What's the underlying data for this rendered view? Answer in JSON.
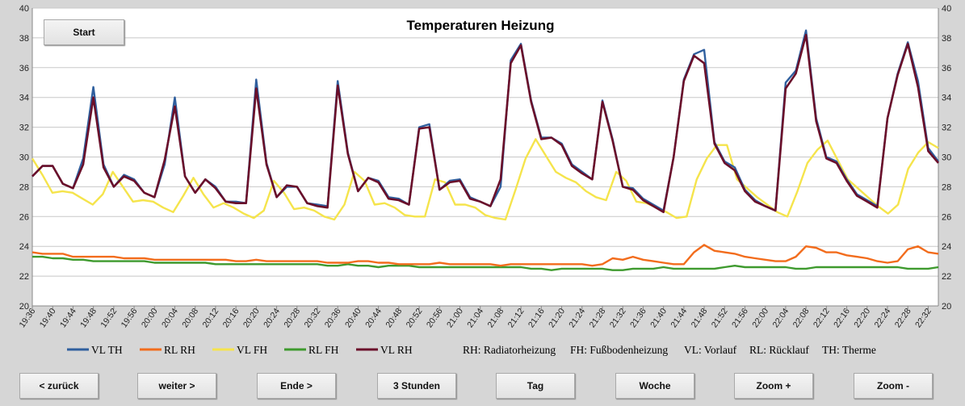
{
  "start_button": "Start",
  "nav_buttons": [
    "< zurück",
    "weiter >",
    "Ende >",
    "3 Stunden",
    "Tag",
    "Woche",
    "Zoom +",
    "Zoom -"
  ],
  "legend_notes": [
    "RH: Radiatorheizung",
    "FH: Fußbodenheizung",
    "VL: Vorlauf",
    "RL: Rücklauf",
    "TH: Therme"
  ],
  "colors": {
    "background": "#d6d6d6",
    "plot": "#ffffff",
    "grid": "#c8c8c8"
  },
  "chart_data": {
    "type": "line",
    "title": "Temperaturen Heizung",
    "ylim": [
      20,
      40
    ],
    "yticks": [
      20,
      22,
      24,
      26,
      28,
      30,
      32,
      34,
      36,
      38,
      40
    ],
    "secondary_y_axis": true,
    "grid": "horizontal",
    "legend_position": "bottom",
    "x_tick_labels": [
      "19:36",
      "19:40",
      "19:44",
      "19:48",
      "19:52",
      "19:56",
      "20:00",
      "20:04",
      "20:08",
      "20:12",
      "20:16",
      "20:20",
      "20:24",
      "20:28",
      "20:32",
      "20:36",
      "20:40",
      "20:44",
      "20:48",
      "20:52",
      "20:56",
      "21:00",
      "21:04",
      "21:08",
      "21:12",
      "21:16",
      "21:20",
      "21:24",
      "21:28",
      "21:32",
      "21:36",
      "21:40",
      "21:44",
      "21:48",
      "21:52",
      "21:56",
      "22:00",
      "22:04",
      "22:08",
      "22:12",
      "22:16",
      "22:20",
      "22:24",
      "22:28",
      "22:32"
    ],
    "series": [
      {
        "name": "VL TH",
        "color": "#2f5f9e",
        "values": [
          28.7,
          29.4,
          29.4,
          28.2,
          27.9,
          29.9,
          34.7,
          29.5,
          28,
          28.8,
          28.5,
          27.6,
          27.3,
          29.5,
          34,
          28.7,
          27.6,
          28.5,
          28,
          27,
          27,
          26.9,
          35.2,
          29.6,
          27.3,
          28,
          28,
          26.9,
          26.8,
          26.7,
          35.1,
          30.3,
          27.7,
          28.6,
          28.4,
          27.3,
          27.2,
          26.8,
          32,
          32.2,
          27.8,
          28.4,
          28.5,
          27.3,
          27,
          26.7,
          28,
          36.5,
          37.6,
          33.8,
          31.3,
          31.3,
          30.9,
          29.5,
          29,
          28.5,
          33.8,
          31.2,
          28,
          27.9,
          27.2,
          26.8,
          26.4,
          30,
          35.2,
          36.9,
          37.2,
          31,
          29.7,
          29.3,
          27.8,
          27.1,
          26.7,
          26.4,
          35,
          35.8,
          38.5,
          32.6,
          30,
          29.7,
          28.5,
          27.5,
          27.1,
          26.7,
          32.6,
          35.6,
          37.7,
          35.1,
          30.6,
          29.7
        ]
      },
      {
        "name": "RL RH",
        "color": "#f26c1c",
        "values": [
          23.6,
          23.5,
          23.5,
          23.5,
          23.3,
          23.3,
          23.3,
          23.3,
          23.3,
          23.2,
          23.2,
          23.2,
          23.1,
          23.1,
          23.1,
          23.1,
          23.1,
          23.1,
          23.1,
          23.1,
          23.0,
          23.0,
          23.1,
          23.0,
          23.0,
          23.0,
          23.0,
          23.0,
          23.0,
          22.9,
          22.9,
          22.9,
          23.0,
          23.0,
          22.9,
          22.9,
          22.8,
          22.8,
          22.8,
          22.8,
          22.9,
          22.8,
          22.8,
          22.8,
          22.8,
          22.8,
          22.7,
          22.8,
          22.8,
          22.8,
          22.8,
          22.8,
          22.8,
          22.8,
          22.8,
          22.7,
          22.8,
          23.2,
          23.1,
          23.3,
          23.1,
          23.0,
          22.9,
          22.8,
          22.8,
          23.6,
          24.1,
          23.7,
          23.6,
          23.5,
          23.3,
          23.2,
          23.1,
          23.0,
          23.0,
          23.3,
          24.0,
          23.9,
          23.6,
          23.6,
          23.4,
          23.3,
          23.2,
          23.0,
          22.9,
          23.0,
          23.8,
          24.0,
          23.6,
          23.5
        ]
      },
      {
        "name": "VL FH",
        "color": "#f5e44c",
        "values": [
          29.9,
          28.8,
          27.6,
          27.7,
          27.6,
          27.2,
          26.8,
          27.5,
          29,
          28,
          27,
          27.1,
          27,
          26.6,
          26.3,
          27.4,
          28.6,
          27.5,
          26.6,
          26.9,
          26.6,
          26.2,
          25.9,
          26.4,
          28.4,
          27.6,
          26.5,
          26.6,
          26.4,
          26,
          25.8,
          26.8,
          29,
          28.4,
          26.8,
          26.9,
          26.6,
          26.1,
          26,
          26,
          28.5,
          28.3,
          26.8,
          26.8,
          26.6,
          26.1,
          25.9,
          25.8,
          27.8,
          29.9,
          31.2,
          30.1,
          29,
          28.6,
          28.3,
          27.7,
          27.3,
          27.1,
          29,
          28.4,
          27,
          26.9,
          26.6,
          26.3,
          25.9,
          26,
          28.5,
          29.9,
          30.8,
          30.8,
          28.5,
          27.9,
          27.3,
          26.8,
          26.3,
          26,
          27.7,
          29.6,
          30.5,
          31.1,
          29.8,
          28.5,
          27.9,
          27.3,
          26.7,
          26.2,
          26.8,
          29.2,
          30.3,
          31,
          30.6
        ]
      },
      {
        "name": "RL FH",
        "color": "#3e9a2e",
        "values": [
          23.3,
          23.3,
          23.2,
          23.2,
          23.1,
          23.1,
          23.0,
          23.0,
          23.0,
          23.0,
          23.0,
          23.0,
          22.9,
          22.9,
          22.9,
          22.9,
          22.9,
          22.9,
          22.8,
          22.8,
          22.8,
          22.8,
          22.8,
          22.8,
          22.8,
          22.8,
          22.8,
          22.8,
          22.8,
          22.7,
          22.7,
          22.8,
          22.7,
          22.7,
          22.6,
          22.7,
          22.7,
          22.7,
          22.6,
          22.6,
          22.6,
          22.6,
          22.6,
          22.6,
          22.6,
          22.6,
          22.6,
          22.6,
          22.6,
          22.5,
          22.5,
          22.4,
          22.5,
          22.5,
          22.5,
          22.5,
          22.5,
          22.4,
          22.4,
          22.5,
          22.5,
          22.5,
          22.6,
          22.5,
          22.5,
          22.5,
          22.5,
          22.5,
          22.6,
          22.7,
          22.6,
          22.6,
          22.6,
          22.6,
          22.6,
          22.5,
          22.5,
          22.6,
          22.6,
          22.6,
          22.6,
          22.6,
          22.6,
          22.6,
          22.6,
          22.6,
          22.5,
          22.5,
          22.5,
          22.6
        ]
      },
      {
        "name": "VL RH",
        "color": "#6a0f2a",
        "values": [
          28.7,
          29.4,
          29.4,
          28.2,
          27.9,
          29.5,
          34,
          29.3,
          28,
          28.7,
          28.4,
          27.6,
          27.3,
          29.8,
          33.4,
          28.7,
          27.6,
          28.5,
          27.9,
          27,
          26.9,
          26.9,
          34.6,
          29.5,
          27.3,
          28.1,
          28,
          26.9,
          26.7,
          26.6,
          34.8,
          30.2,
          27.7,
          28.6,
          28.3,
          27.2,
          27.1,
          26.8,
          31.9,
          32,
          27.8,
          28.3,
          28.4,
          27.2,
          27,
          26.7,
          28.5,
          36.3,
          37.5,
          33.7,
          31.2,
          31.3,
          30.8,
          29.4,
          28.9,
          28.5,
          33.7,
          31.1,
          28,
          27.8,
          27.1,
          26.7,
          26.3,
          30,
          35.1,
          36.8,
          36.3,
          30.9,
          29.6,
          29.1,
          27.7,
          27,
          26.7,
          26.4,
          34.6,
          35.6,
          38.2,
          32.4,
          29.9,
          29.6,
          28.4,
          27.4,
          27,
          26.6,
          32.6,
          35.5,
          37.6,
          34.7,
          30.4,
          29.6
        ]
      }
    ]
  }
}
